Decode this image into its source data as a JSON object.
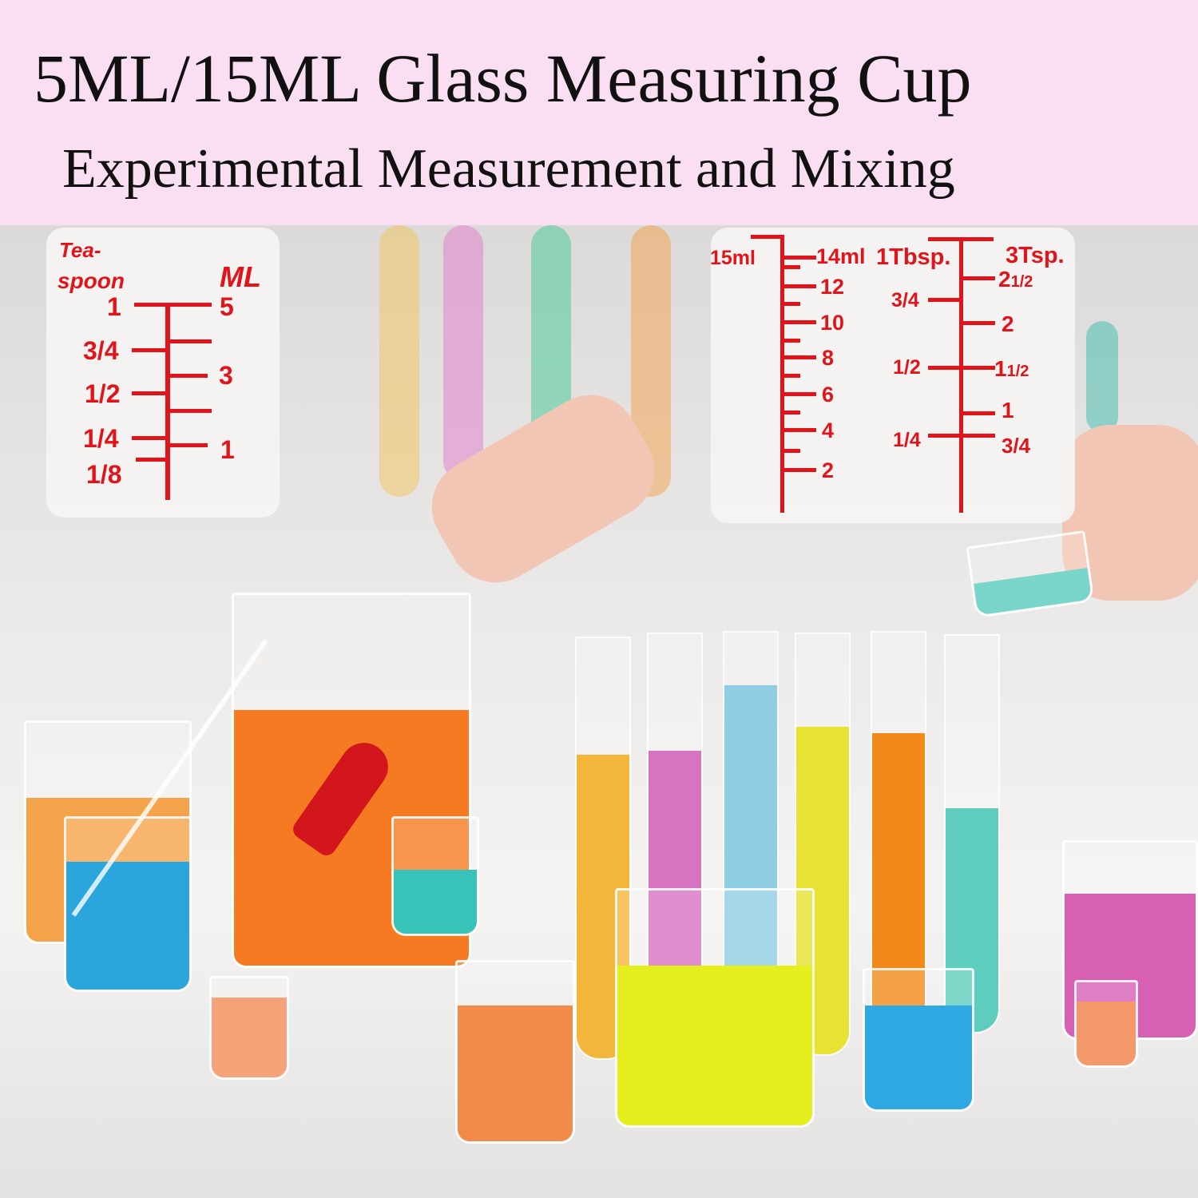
{
  "header": {
    "title": "5ML/15ML Glass Measuring Cup",
    "subtitle": "Experimental Measurement and Mixing"
  },
  "colors": {
    "header_bg": "#f9dff1",
    "scale_red": "#e0151b"
  },
  "scale_5ml": {
    "left_header": [
      "Tea-",
      "spoon"
    ],
    "right_header": "ML",
    "left_labels": [
      "1",
      "3/4",
      "1/2",
      "1/4",
      "1/8"
    ],
    "right_labels": [
      "5",
      "3",
      "1"
    ]
  },
  "scale_15ml": {
    "ml_top": "15ml",
    "ml_labels": [
      "14ml",
      "12",
      "10",
      "8",
      "6",
      "4",
      "2"
    ],
    "tbsp_header": "1Tbsp.",
    "tsp_header": "3Tsp.",
    "tbsp_labels": [
      "3/4",
      "1/2",
      "1/4"
    ],
    "tsp_labels": [
      {
        "whole": "2",
        "frac": "1/2"
      },
      {
        "whole": "2",
        "frac": ""
      },
      {
        "whole": "1",
        "frac": "1/2"
      },
      {
        "whole": "1",
        "frac": ""
      },
      {
        "whole": "",
        "frac": "3/4"
      }
    ]
  }
}
